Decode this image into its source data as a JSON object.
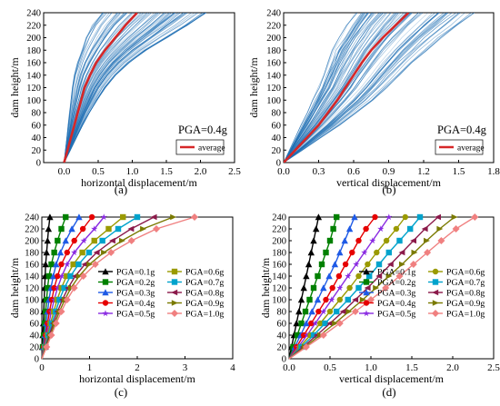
{
  "chart_data": [
    {
      "panel_label": "(a)",
      "type": "line",
      "xlabel": "horizontal displacement/m",
      "ylabel": "dam height/m",
      "xlim": [
        -0.3,
        2.5
      ],
      "ylim": [
        0,
        240
      ],
      "xticks": [
        0.0,
        0.5,
        1.0,
        1.5,
        2.0,
        2.5
      ],
      "xtick_labels": [
        "0.0",
        "0.5",
        "1.0",
        "1.5",
        "2.0",
        "2.5"
      ],
      "yticks": [
        0,
        20,
        40,
        60,
        80,
        100,
        120,
        140,
        160,
        180,
        200,
        220,
        240
      ],
      "ytick_labels": [
        "0",
        "20",
        "40",
        "60",
        "80",
        "100",
        "120",
        "140",
        "160",
        "180",
        "200",
        "220",
        "240"
      ],
      "annotation": "PGA=0.4g",
      "annotation_color": "#d0021b",
      "legend": [
        "average"
      ],
      "legend_position": "lower-right",
      "series_colors": {
        "samples": "#1f6fb4",
        "average": "#d62728"
      },
      "samples_note_count": 100,
      "heights": [
        0,
        20,
        40,
        60,
        80,
        100,
        120,
        140,
        160,
        180,
        200,
        220,
        240
      ],
      "average_x": [
        0,
        0.05,
        0.1,
        0.15,
        0.2,
        0.25,
        0.3,
        0.38,
        0.47,
        0.6,
        0.75,
        0.9,
        1.07
      ],
      "samples_min_x": [
        0,
        0.02,
        0.04,
        0.06,
        0.08,
        0.1,
        0.12,
        0.15,
        0.2,
        0.26,
        0.33,
        0.42,
        0.56
      ],
      "samples_max_x": [
        0,
        0.09,
        0.18,
        0.27,
        0.37,
        0.48,
        0.6,
        0.75,
        0.95,
        1.2,
        1.5,
        1.8,
        2.08
      ]
    },
    {
      "panel_label": "(b)",
      "type": "line",
      "xlabel": "vertical displacement/m",
      "ylabel": "dam height/m",
      "xlim": [
        0,
        1.8
      ],
      "ylim": [
        0,
        240
      ],
      "xticks": [
        0.0,
        0.3,
        0.6,
        0.9,
        1.2,
        1.5,
        1.8
      ],
      "xtick_labels": [
        "0.0",
        "0.3",
        "0.6",
        "0.9",
        "1.2",
        "1.5",
        "1.8"
      ],
      "yticks": [
        0,
        20,
        40,
        60,
        80,
        100,
        120,
        140,
        160,
        180,
        200,
        220,
        240
      ],
      "ytick_labels": [
        "0",
        "20",
        "40",
        "60",
        "80",
        "100",
        "120",
        "140",
        "160",
        "180",
        "200",
        "220",
        "240"
      ],
      "annotation": "PGA=0.4g",
      "annotation_color": "#d0021b",
      "legend": [
        "average"
      ],
      "legend_position": "lower-right",
      "series_colors": {
        "samples": "#1f6fb4",
        "average": "#d62728"
      },
      "heights": [
        0,
        20,
        40,
        60,
        80,
        100,
        120,
        140,
        160,
        180,
        200,
        220,
        240
      ],
      "average_x": [
        0,
        0.1,
        0.2,
        0.3,
        0.38,
        0.46,
        0.53,
        0.6,
        0.67,
        0.75,
        0.85,
        0.96,
        1.07
      ],
      "samples_min_x": [
        0,
        0.05,
        0.1,
        0.15,
        0.2,
        0.25,
        0.3,
        0.34,
        0.38,
        0.42,
        0.48,
        0.54,
        0.62
      ],
      "samples_max_x": [
        0,
        0.16,
        0.32,
        0.48,
        0.62,
        0.76,
        0.88,
        0.99,
        1.1,
        1.22,
        1.35,
        1.49,
        1.63
      ]
    },
    {
      "panel_label": "(c)",
      "type": "line",
      "xlabel": "horizontal displacement/m",
      "ylabel": "dam height/m",
      "xlim": [
        0,
        4
      ],
      "ylim": [
        0,
        240
      ],
      "xticks": [
        0,
        1,
        2,
        3,
        4
      ],
      "xtick_labels": [
        "0",
        "1",
        "2",
        "3",
        "4"
      ],
      "yticks": [
        0,
        20,
        40,
        60,
        80,
        100,
        120,
        140,
        160,
        180,
        200,
        220,
        240
      ],
      "ytick_labels": [
        "0",
        "20",
        "40",
        "60",
        "80",
        "100",
        "120",
        "140",
        "160",
        "180",
        "200",
        "220",
        "240"
      ],
      "legend_position": "lower-right",
      "heights": [
        0,
        20,
        40,
        60,
        80,
        100,
        120,
        140,
        160,
        180,
        200,
        220,
        240
      ],
      "series": [
        {
          "name": "PGA=0.1g",
          "color": "#000000",
          "marker": "triangle-up",
          "x": [
            0,
            0.01,
            0.02,
            0.03,
            0.04,
            0.05,
            0.06,
            0.07,
            0.08,
            0.1,
            0.12,
            0.14,
            0.17
          ]
        },
        {
          "name": "PGA=0.2g",
          "color": "#008000",
          "marker": "square",
          "x": [
            0,
            0.02,
            0.04,
            0.06,
            0.08,
            0.1,
            0.12,
            0.15,
            0.2,
            0.26,
            0.33,
            0.41,
            0.5
          ]
        },
        {
          "name": "PGA=0.3g",
          "color": "#1e5ae6",
          "marker": "triangle-up",
          "x": [
            0,
            0.03,
            0.06,
            0.09,
            0.12,
            0.15,
            0.19,
            0.24,
            0.3,
            0.39,
            0.5,
            0.63,
            0.78
          ]
        },
        {
          "name": "PGA=0.4g",
          "color": "#e60000",
          "marker": "circle",
          "x": [
            0,
            0.04,
            0.08,
            0.12,
            0.16,
            0.21,
            0.26,
            0.33,
            0.41,
            0.53,
            0.68,
            0.86,
            1.05
          ]
        },
        {
          "name": "PGA=0.5g",
          "color": "#8a2be2",
          "marker": "star",
          "x": [
            0,
            0.05,
            0.1,
            0.15,
            0.2,
            0.26,
            0.33,
            0.42,
            0.53,
            0.68,
            0.88,
            1.1,
            1.3
          ]
        },
        {
          "name": "PGA=0.6g",
          "color": "#9a9a00",
          "marker": "square",
          "x": [
            0,
            0.06,
            0.12,
            0.18,
            0.25,
            0.32,
            0.41,
            0.52,
            0.66,
            0.85,
            1.1,
            1.4,
            1.7
          ]
        },
        {
          "name": "PGA=0.7g",
          "color": "#00a3cc",
          "marker": "square",
          "x": [
            0,
            0.07,
            0.14,
            0.21,
            0.29,
            0.37,
            0.47,
            0.6,
            0.77,
            0.99,
            1.27,
            1.6,
            2.0
          ]
        },
        {
          "name": "PGA=0.8g",
          "color": "#8b1a4a",
          "marker": "triangle-left",
          "x": [
            0,
            0.08,
            0.16,
            0.24,
            0.33,
            0.43,
            0.55,
            0.7,
            0.9,
            1.15,
            1.48,
            1.87,
            2.35
          ]
        },
        {
          "name": "PGA=0.9g",
          "color": "#7a7a00",
          "marker": "triangle-right",
          "x": [
            0,
            0.09,
            0.18,
            0.27,
            0.37,
            0.48,
            0.61,
            0.78,
            1.0,
            1.3,
            1.68,
            2.12,
            2.75
          ]
        },
        {
          "name": "PGA=1.0g",
          "color": "#f08080",
          "marker": "diamond",
          "x": [
            0,
            0.1,
            0.2,
            0.3,
            0.41,
            0.53,
            0.68,
            0.87,
            1.12,
            1.45,
            1.88,
            2.4,
            3.2
          ]
        }
      ]
    },
    {
      "panel_label": "(d)",
      "type": "line",
      "xlabel": "vertical displacement/m",
      "ylabel": "dam height/m",
      "xlim": [
        0,
        2.5
      ],
      "ylim": [
        0,
        240
      ],
      "xticks": [
        0.0,
        0.5,
        1.0,
        1.5,
        2.0,
        2.5
      ],
      "xtick_labels": [
        "0.0",
        "0.5",
        "1.0",
        "1.5",
        "2.0",
        "2.5"
      ],
      "yticks": [
        0,
        20,
        40,
        60,
        80,
        100,
        120,
        140,
        160,
        180,
        200,
        220,
        240
      ],
      "ytick_labels": [
        "0",
        "20",
        "40",
        "60",
        "80",
        "100",
        "120",
        "140",
        "160",
        "180",
        "200",
        "220",
        "240"
      ],
      "legend_position": "lower-right",
      "heights": [
        0,
        20,
        40,
        60,
        80,
        100,
        120,
        140,
        160,
        180,
        200,
        220,
        240
      ],
      "series": [
        {
          "name": "PGA=0.1g",
          "color": "#000000",
          "marker": "triangle-up",
          "x": [
            0,
            0.03,
            0.06,
            0.09,
            0.12,
            0.15,
            0.18,
            0.21,
            0.24,
            0.27,
            0.3,
            0.33,
            0.36
          ]
        },
        {
          "name": "PGA=0.2g",
          "color": "#008000",
          "marker": "square",
          "x": [
            0,
            0.05,
            0.1,
            0.15,
            0.2,
            0.25,
            0.3,
            0.35,
            0.4,
            0.45,
            0.5,
            0.54,
            0.58
          ]
        },
        {
          "name": "PGA=0.3g",
          "color": "#1e5ae6",
          "marker": "triangle-up",
          "x": [
            0,
            0.07,
            0.14,
            0.21,
            0.28,
            0.35,
            0.42,
            0.49,
            0.56,
            0.62,
            0.68,
            0.74,
            0.8
          ]
        },
        {
          "name": "PGA=0.4g",
          "color": "#e60000",
          "marker": "circle",
          "x": [
            0,
            0.09,
            0.18,
            0.27,
            0.36,
            0.45,
            0.53,
            0.61,
            0.69,
            0.77,
            0.85,
            0.94,
            1.05
          ]
        },
        {
          "name": "PGA=0.5g",
          "color": "#8a2be2",
          "marker": "star",
          "x": [
            0,
            0.11,
            0.22,
            0.32,
            0.42,
            0.52,
            0.62,
            0.72,
            0.82,
            0.92,
            1.02,
            1.12,
            1.22
          ]
        },
        {
          "name": "PGA=0.6g",
          "color": "#9a9a00",
          "marker": "circle",
          "x": [
            0,
            0.13,
            0.26,
            0.38,
            0.5,
            0.62,
            0.74,
            0.85,
            0.96,
            1.07,
            1.19,
            1.31,
            1.42
          ]
        },
        {
          "name": "PGA=0.7g",
          "color": "#00a3cc",
          "marker": "square",
          "x": [
            0,
            0.15,
            0.3,
            0.44,
            0.58,
            0.72,
            0.85,
            0.98,
            1.1,
            1.22,
            1.35,
            1.48,
            1.6
          ]
        },
        {
          "name": "PGA=0.8g",
          "color": "#8b1a4a",
          "marker": "triangle-left",
          "x": [
            0,
            0.17,
            0.34,
            0.5,
            0.66,
            0.81,
            0.96,
            1.1,
            1.24,
            1.38,
            1.52,
            1.66,
            1.82
          ]
        },
        {
          "name": "PGA=0.9g",
          "color": "#7a7a00",
          "marker": "triangle-right",
          "x": [
            0,
            0.19,
            0.38,
            0.56,
            0.73,
            0.9,
            1.06,
            1.22,
            1.38,
            1.53,
            1.68,
            1.84,
            2.02
          ]
        },
        {
          "name": "PGA=1.0g",
          "color": "#f08080",
          "marker": "diamond",
          "x": [
            0,
            0.21,
            0.42,
            0.62,
            0.81,
            1.0,
            1.18,
            1.35,
            1.52,
            1.69,
            1.86,
            2.04,
            2.27
          ]
        }
      ]
    }
  ]
}
